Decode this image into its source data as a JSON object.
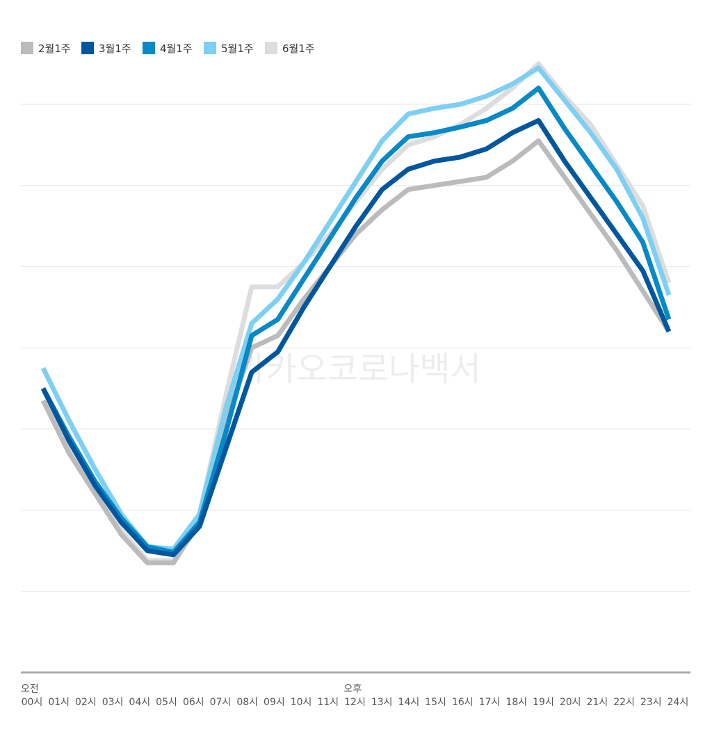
{
  "chart_data": {
    "type": "line",
    "title": "",
    "xlabel": "",
    "ylabel": "",
    "ylim": [
      0,
      7
    ],
    "grid": true,
    "legend_position": "top-left",
    "watermark": "카카오코로나백서",
    "period_labels": [
      {
        "label": "오전",
        "at": "00시"
      },
      {
        "label": "오후",
        "at": "12시"
      }
    ],
    "categories": [
      "00시",
      "01시",
      "02시",
      "03시",
      "04시",
      "05시",
      "06시",
      "07시",
      "08시",
      "09시",
      "10시",
      "11시",
      "12시",
      "13시",
      "14시",
      "15시",
      "16시",
      "17시",
      "18시",
      "19시",
      "20시",
      "21시",
      "22시",
      "23시",
      "24시"
    ],
    "series": [
      {
        "name": "2월1주",
        "color": "#BBBBBB",
        "values": [
          3.35,
          2.7,
          2.2,
          1.7,
          1.35,
          1.35,
          1.85,
          3.1,
          4.0,
          4.15,
          4.6,
          5.0,
          5.4,
          5.7,
          5.95,
          6.0,
          6.05,
          6.1,
          6.3,
          6.55,
          6.1,
          5.65,
          5.2,
          4.7,
          4.2
        ]
      },
      {
        "name": "3월1주",
        "color": "#00579E",
        "values": [
          3.5,
          2.85,
          2.3,
          1.85,
          1.5,
          1.45,
          1.8,
          2.75,
          3.7,
          3.95,
          4.5,
          5.0,
          5.5,
          5.95,
          6.2,
          6.3,
          6.35,
          6.45,
          6.65,
          6.8,
          6.3,
          5.85,
          5.4,
          4.95,
          4.2
        ]
      },
      {
        "name": "4월1주",
        "color": "#0689C6",
        "values": [
          3.5,
          2.9,
          2.35,
          1.9,
          1.55,
          1.48,
          1.85,
          2.95,
          4.15,
          4.35,
          4.85,
          5.35,
          5.85,
          6.3,
          6.6,
          6.65,
          6.72,
          6.8,
          6.95,
          7.2,
          6.7,
          6.25,
          5.8,
          5.3,
          4.35
        ]
      },
      {
        "name": "5월1주",
        "color": "#7ED0F2",
        "values": [
          3.75,
          3.1,
          2.5,
          1.95,
          1.55,
          1.52,
          1.95,
          3.25,
          4.3,
          4.6,
          5.05,
          5.55,
          6.05,
          6.55,
          6.88,
          6.95,
          7.0,
          7.1,
          7.25,
          7.45,
          7.05,
          6.65,
          6.2,
          5.6,
          4.65
        ]
      },
      {
        "name": "6월1주",
        "color": "#DDDDDD",
        "values": [
          3.5,
          2.8,
          2.25,
          1.75,
          1.38,
          1.38,
          1.95,
          3.4,
          4.75,
          4.75,
          5.05,
          5.4,
          5.8,
          6.2,
          6.5,
          6.6,
          6.75,
          6.95,
          7.2,
          7.5,
          7.1,
          6.75,
          6.25,
          5.75,
          4.8
        ]
      }
    ],
    "draw_order": [
      "6월1주",
      "2월1주",
      "5월1주",
      "4월1주",
      "3월1주"
    ]
  }
}
